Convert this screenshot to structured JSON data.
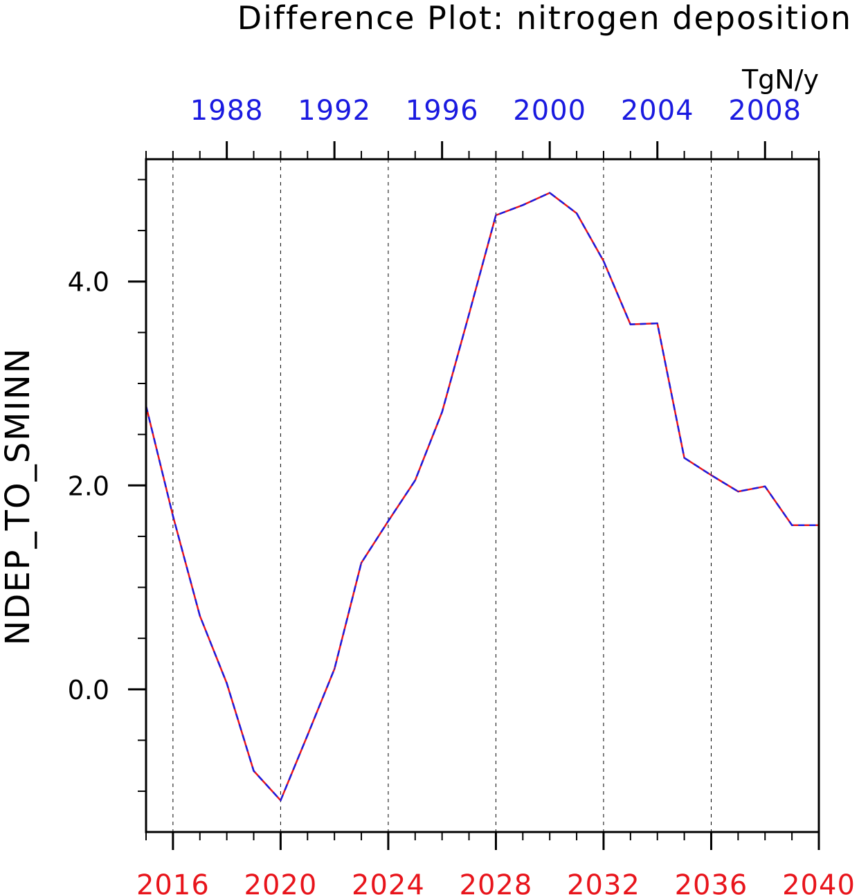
{
  "chart_data": {
    "type": "line",
    "title": "Difference Plot: nitrogen deposition",
    "xlabel": "",
    "ylabel": "NDEP_TO_SMINN",
    "units": "TgN/y",
    "xlim": [
      2015,
      2040
    ],
    "ylim": [
      -1.4,
      5.2
    ],
    "x_bottom_ticks": [
      2016,
      2020,
      2024,
      2028,
      2032,
      2036,
      2040
    ],
    "x_bottom_tick_labels": [
      "2016",
      "2020",
      "2024",
      "2028",
      "2032",
      "2036",
      "2040"
    ],
    "x_top_ticks": [
      1988,
      1992,
      1996,
      2000,
      2004,
      2008
    ],
    "x_top_tick_labels": [
      "1988",
      "1992",
      "1996",
      "2000",
      "2004",
      "2008"
    ],
    "x_top_lim": [
      1985,
      2010
    ],
    "y_major_ticks": [
      0,
      2,
      4
    ],
    "y_tick_labels": [
      "0.0",
      "2.0",
      "4.0"
    ],
    "y_minor_ticks": [
      -1.0,
      -0.5,
      0.5,
      1.0,
      1.5,
      2.5,
      3.0,
      3.5,
      4.5,
      5.0
    ],
    "grid": "vertical-dashed",
    "series": [
      {
        "color_primary": "#e8141b",
        "color_dash": "#1a1ae0",
        "x": [
          2015,
          2016,
          2017,
          2018,
          2019,
          2020,
          2021,
          2022,
          2023,
          2024,
          2025,
          2026,
          2027,
          2028,
          2029,
          2030,
          2031,
          2032,
          2033,
          2034,
          2035,
          2036,
          2037,
          2038,
          2039,
          2040
        ],
        "y": [
          2.78,
          1.7,
          0.72,
          0.06,
          -0.8,
          -1.09,
          -0.45,
          0.2,
          1.24,
          1.65,
          2.05,
          2.72,
          3.68,
          4.65,
          4.75,
          4.87,
          4.67,
          4.2,
          3.58,
          3.59,
          2.27,
          2.1,
          1.94,
          1.99,
          1.61,
          1.61
        ]
      }
    ]
  }
}
